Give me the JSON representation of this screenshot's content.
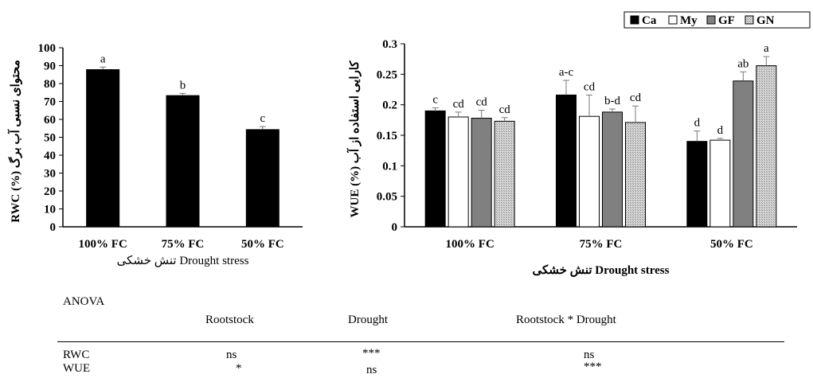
{
  "chart_data": [
    {
      "type": "bar",
      "ylabel_en": "RWC (%)",
      "ylabel_fa": "محتوای نسبی آب برگ",
      "xlabel_en": "Drought stress",
      "xlabel_fa": "تنش خشکی",
      "categories": [
        "100% FC",
        "75% FC",
        "50% FC"
      ],
      "values": [
        88,
        73.5,
        54.5
      ],
      "errors": [
        1.2,
        1.0,
        1.5
      ],
      "letters": [
        "a",
        "b",
        "c"
      ],
      "ylim": [
        0,
        100
      ],
      "ytick_step": 10,
      "ytick_labels": [
        "0",
        "10",
        "20",
        "30",
        "40",
        "50",
        "60",
        "70",
        "80",
        "90",
        "100"
      ],
      "color": "#000000"
    },
    {
      "type": "bar",
      "ylabel_en": "WUE (%)",
      "ylabel_fa": "کارایی استفاده از آب",
      "xlabel_en": "Drought stress",
      "xlabel_fa": "تنش خشکی",
      "categories": [
        "100% FC",
        "75% FC",
        "50% FC"
      ],
      "ylim": [
        0,
        0.3
      ],
      "ytick_step": 0.05,
      "ytick_labels": [
        "0",
        "0.05",
        "0.1",
        "0.15",
        "0.2",
        "0.25",
        "0.3"
      ],
      "legend_position": "top-right",
      "series": [
        {
          "name": "Ca",
          "values": [
            0.19,
            0.216,
            0.14
          ],
          "errors": [
            0.005,
            0.024,
            0.017
          ],
          "letters": [
            "c",
            "a-c",
            "d"
          ],
          "fill": "#000000",
          "style": "solid"
        },
        {
          "name": "My",
          "values": [
            0.18,
            0.181,
            0.142
          ],
          "errors": [
            0.008,
            0.035,
            0.003
          ],
          "letters": [
            "cd",
            "cd",
            "d"
          ],
          "fill": "#ffffff",
          "style": "solid"
        },
        {
          "name": "GF",
          "values": [
            0.178,
            0.188,
            0.239
          ],
          "errors": [
            0.013,
            0.005,
            0.015
          ],
          "letters": [
            "cd",
            "b-d",
            "ab"
          ],
          "fill": "#808080",
          "style": "solid"
        },
        {
          "name": "GN",
          "values": [
            0.173,
            0.171,
            0.264
          ],
          "errors": [
            0.006,
            0.027,
            0.015
          ],
          "letters": [
            "cd",
            "cd",
            "a"
          ],
          "fill": "#c8c8c8",
          "style": "hatched"
        }
      ]
    }
  ],
  "anova": {
    "title": "ANOVA",
    "columns": [
      "Rootstock",
      "Drought",
      "Rootstock * Drought"
    ],
    "rows": [
      {
        "label": "RWC",
        "values": [
          "ns",
          "***",
          "ns"
        ]
      },
      {
        "label": "WUE",
        "values": [
          "*",
          "ns",
          "***"
        ]
      }
    ]
  }
}
